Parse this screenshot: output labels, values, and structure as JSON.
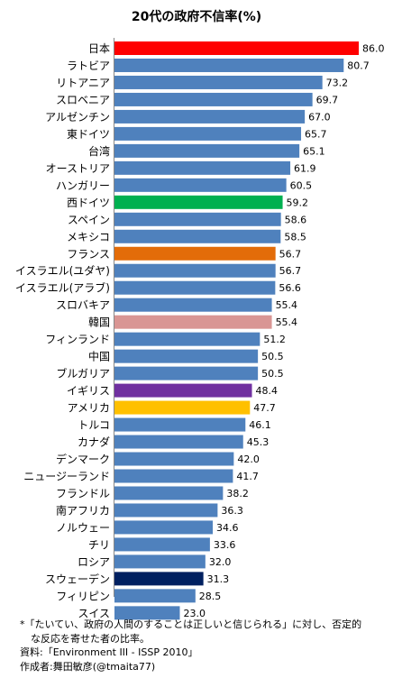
{
  "chart_data": {
    "type": "bar",
    "orientation": "horizontal",
    "title": "20代の政府不信率(%)",
    "xlabel": "",
    "ylabel": "",
    "xlim": [
      0,
      86.0
    ],
    "grid": false,
    "legend": "none",
    "default_color": "#4f81bd",
    "categories": [
      "日本",
      "ラトビア",
      "リトアニア",
      "スロベニア",
      "アルゼンチン",
      "東ドイツ",
      "台湾",
      "オーストリア",
      "ハンガリー",
      "西ドイツ",
      "スペイン",
      "メキシコ",
      "フランス",
      "イスラエル(ユダヤ)",
      "イスラエル(アラブ)",
      "スロバキア",
      "韓国",
      "フィンランド",
      "中国",
      "ブルガリア",
      "イギリス",
      "アメリカ",
      "トルコ",
      "カナダ",
      "デンマーク",
      "ニュージーランド",
      "フランドル",
      "南アフリカ",
      "ノルウェー",
      "チリ",
      "ロシア",
      "スウェーデン",
      "フィリピン",
      "スイス"
    ],
    "values": [
      86.0,
      80.7,
      73.2,
      69.7,
      67.0,
      65.7,
      65.1,
      61.9,
      60.5,
      59.2,
      58.6,
      58.5,
      56.7,
      56.7,
      56.6,
      55.4,
      55.4,
      51.2,
      50.5,
      50.5,
      48.4,
      47.7,
      46.1,
      45.3,
      42.0,
      41.7,
      38.2,
      36.3,
      34.6,
      33.6,
      32.0,
      31.3,
      28.5,
      23.0
    ],
    "value_labels": [
      "86.0",
      "80.7",
      "73.2",
      "69.7",
      "67.0",
      "65.7",
      "65.1",
      "61.9",
      "60.5",
      "59.2",
      "58.6",
      "58.5",
      "56.7",
      "56.7",
      "56.6",
      "55.4",
      "55.4",
      "51.2",
      "50.5",
      "50.5",
      "48.4",
      "47.7",
      "46.1",
      "45.3",
      "42.0",
      "41.7",
      "38.2",
      "36.3",
      "34.6",
      "33.6",
      "32.0",
      "31.3",
      "28.5",
      "23.0"
    ],
    "highlight_colors": {
      "日本": "#ff0000",
      "西ドイツ": "#00b050",
      "フランス": "#e36c09",
      "韓国": "#d99694",
      "イギリス": "#7030a0",
      "アメリカ": "#ffc000",
      "スウェーデン": "#002060"
    }
  },
  "notes": {
    "line1": "*「たいてい、政府の人間のすることは正しいと信じられる」に対し、否定的",
    "line2": "な反応を寄せた者の比率。",
    "source": "資料:「Environment III - ISSP 2010」",
    "author": "作成者:舞田敏彦(@tmaita77)"
  }
}
